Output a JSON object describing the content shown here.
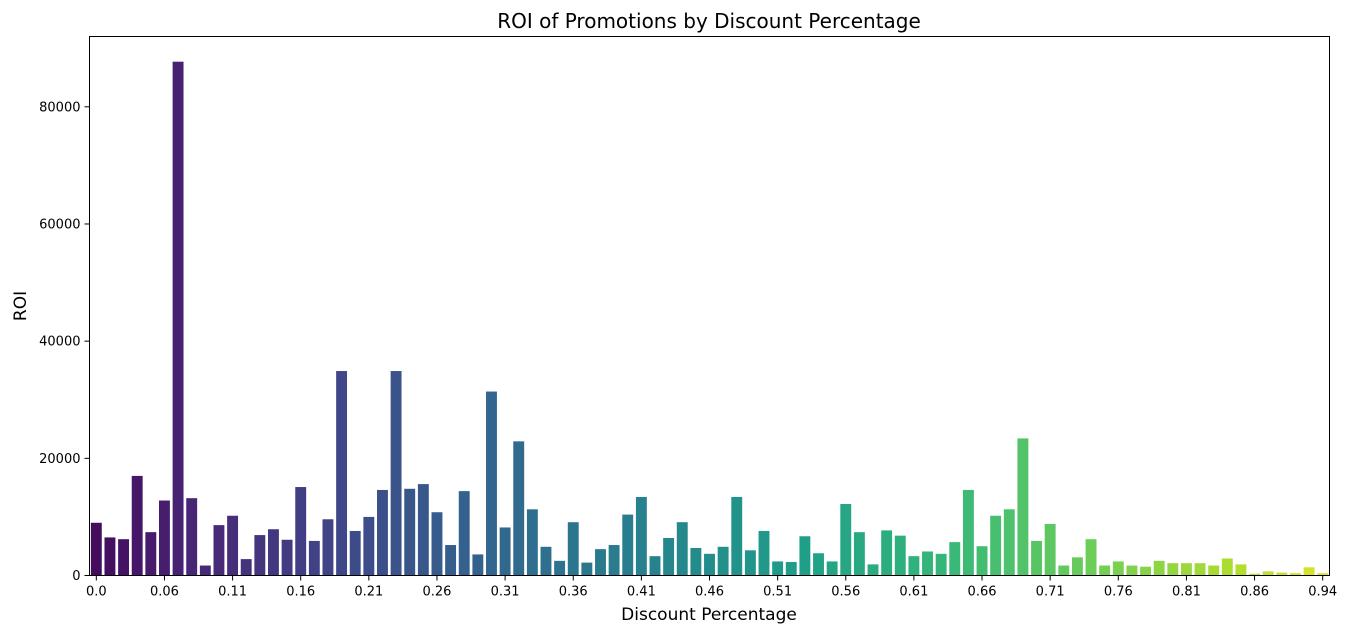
{
  "chart_data": {
    "type": "bar",
    "title": "ROI of Promotions by Discount Percentage",
    "xlabel": "Discount Percentage",
    "ylabel": "ROI",
    "ylim": [
      0,
      92000
    ],
    "yticks": [
      0,
      20000,
      40000,
      60000,
      80000
    ],
    "ytick_labels": [
      "0",
      "20000",
      "40000",
      "60000",
      "80000"
    ],
    "xtick_labels": [
      "0.0",
      "0.06",
      "0.11",
      "0.16",
      "0.21",
      "0.26",
      "0.31",
      "0.36",
      "0.41",
      "0.46",
      "0.51",
      "0.56",
      "0.61",
      "0.66",
      "0.71",
      "0.76",
      "0.81",
      "0.86",
      "0.94"
    ],
    "xtick_every": 5,
    "grid": false,
    "palette": "viridis",
    "values": [
      9000,
      6500,
      6200,
      17000,
      7400,
      12800,
      87700,
      13200,
      1700,
      8600,
      10200,
      2800,
      6900,
      7900,
      6100,
      15100,
      5900,
      9600,
      34900,
      7600,
      10000,
      14600,
      34900,
      14800,
      15600,
      10800,
      5200,
      14400,
      3600,
      31400,
      8200,
      22900,
      11300,
      4900,
      2500,
      9100,
      2200,
      4500,
      5200,
      10400,
      13400,
      3300,
      6400,
      9100,
      4700,
      3700,
      4900,
      13400,
      4300,
      7600,
      2400,
      2300,
      6700,
      3800,
      2400,
      12200,
      7400,
      1900,
      7700,
      6800,
      3300,
      4100,
      3700,
      5700,
      14600,
      5000,
      10200,
      11300,
      23400,
      5900,
      8800,
      1700,
      3100,
      6200,
      1700,
      2400,
      1700,
      1500,
      2500,
      2100,
      2100,
      2100,
      1700,
      2900,
      1900,
      300,
      700,
      500,
      400,
      1400,
      400
    ]
  }
}
